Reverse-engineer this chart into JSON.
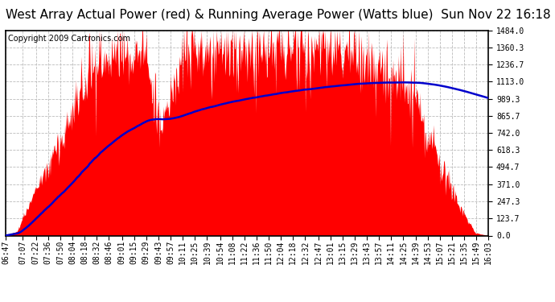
{
  "title": "West Array Actual Power (red) & Running Average Power (Watts blue)  Sun Nov 22 16:18",
  "copyright": "Copyright 2009 Cartronics.com",
  "yticks": [
    0.0,
    123.7,
    247.3,
    371.0,
    494.7,
    618.3,
    742.0,
    865.7,
    989.3,
    1113.0,
    1236.7,
    1360.3,
    1484.0
  ],
  "ymax": 1484.0,
  "ymin": 0.0,
  "background_color": "#ffffff",
  "fill_color": "#ff0000",
  "line_color": "#0000cc",
  "grid_color": "#bbbbbb",
  "xtick_labels": [
    "06:47",
    "07:07",
    "07:22",
    "07:36",
    "07:50",
    "08:04",
    "08:18",
    "08:32",
    "08:46",
    "09:01",
    "09:15",
    "09:29",
    "09:43",
    "09:57",
    "10:11",
    "10:25",
    "10:39",
    "10:54",
    "11:08",
    "11:22",
    "11:36",
    "11:50",
    "12:04",
    "12:18",
    "12:32",
    "12:47",
    "13:01",
    "13:15",
    "13:29",
    "13:43",
    "13:57",
    "14:11",
    "14:25",
    "14:39",
    "14:53",
    "15:07",
    "15:21",
    "15:35",
    "15:49",
    "16:03"
  ],
  "title_fontsize": 11,
  "tick_fontsize": 7,
  "copyright_fontsize": 7
}
